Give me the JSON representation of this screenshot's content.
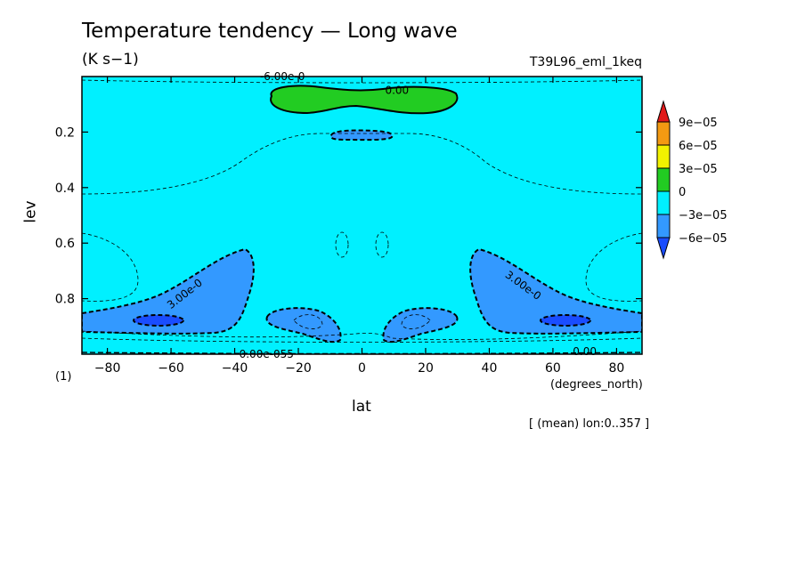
{
  "title": "Temperature tendency — Long wave",
  "units": "(K s−1)",
  "run_id": "T39L96_eml_1keq",
  "chart_data": {
    "type": "contour",
    "xlabel": "lat",
    "xunits": "(degrees_north)",
    "ylabel": "lev",
    "ycorner_label": "(1)",
    "xlim": [
      -88,
      88
    ],
    "ylim": [
      1.0,
      0.0
    ],
    "x_ticks": [
      -80,
      -60,
      -40,
      -20,
      0,
      20,
      40,
      60,
      80
    ],
    "x_tick_labels": [
      "−80",
      "−60",
      "−40",
      "−20",
      "0",
      "20",
      "40",
      "60",
      "80"
    ],
    "y_ticks": [
      0.2,
      0.4,
      0.6,
      0.8
    ],
    "y_tick_labels": [
      "0.2",
      "0.4",
      "0.6",
      "0.8"
    ],
    "background_level": "-3e-05 to 0",
    "colorbar": {
      "labels": [
        "9e−05",
        "6e−05",
        "3e−05",
        "0",
        "−3e−05",
        "−6e−05"
      ],
      "colors": [
        "#e11a1a",
        "#f39a12",
        "#f2f200",
        "#22cc22",
        "#00f0ff",
        "#3399ff",
        "#1a4dff"
      ]
    },
    "regions": [
      {
        "level": "0 to 3e-05",
        "color": "#22cc22",
        "lat": [
          -30,
          30
        ],
        "lev": [
          0.04,
          0.13
        ]
      },
      {
        "level": "-6e-05 to -3e-05",
        "color": "#3399ff",
        "lat": [
          -10,
          10
        ],
        "lev": [
          0.19,
          0.22
        ]
      },
      {
        "level": "-6e-05 to -3e-05",
        "color": "#3399ff",
        "lat": [
          -88,
          -34
        ],
        "lev": [
          0.62,
          0.92
        ]
      },
      {
        "level": "-6e-05 to -3e-05",
        "color": "#3399ff",
        "lat": [
          34,
          88
        ],
        "lev": [
          0.62,
          0.92
        ]
      },
      {
        "level": "-6e-05 to -3e-05",
        "color": "#3399ff",
        "lat": [
          -30,
          -6
        ],
        "lev": [
          0.84,
          0.96
        ]
      },
      {
        "level": "-6e-05 to -3e-05",
        "color": "#3399ff",
        "lat": [
          6,
          30
        ],
        "lev": [
          0.84,
          0.96
        ]
      },
      {
        "level": "< -6e-05",
        "color": "#1a4dff",
        "lat": [
          -72,
          -58
        ],
        "lev": [
          0.86,
          0.89
        ]
      },
      {
        "level": "< -6e-05",
        "color": "#1a4dff",
        "lat": [
          58,
          72
        ],
        "lev": [
          0.86,
          0.89
        ]
      }
    ],
    "contour_labels": [
      {
        "text": "0.00",
        "lat": 11,
        "lev": 0.05
      },
      {
        "text": "-6.00e-0",
        "lat": -25,
        "lev": 0.0
      },
      {
        "text": "3.00e-0",
        "lat": -55,
        "lev": 0.78
      },
      {
        "text": "3.00e-0",
        "lat": 50,
        "lev": 0.75
      },
      {
        "text": "0.00",
        "lat": 70,
        "lev": 0.99
      },
      {
        "text": "0.00e-055",
        "lat": -30,
        "lev": 1.0
      }
    ]
  },
  "footnote": "[ (mean) lon:0..357 ]"
}
